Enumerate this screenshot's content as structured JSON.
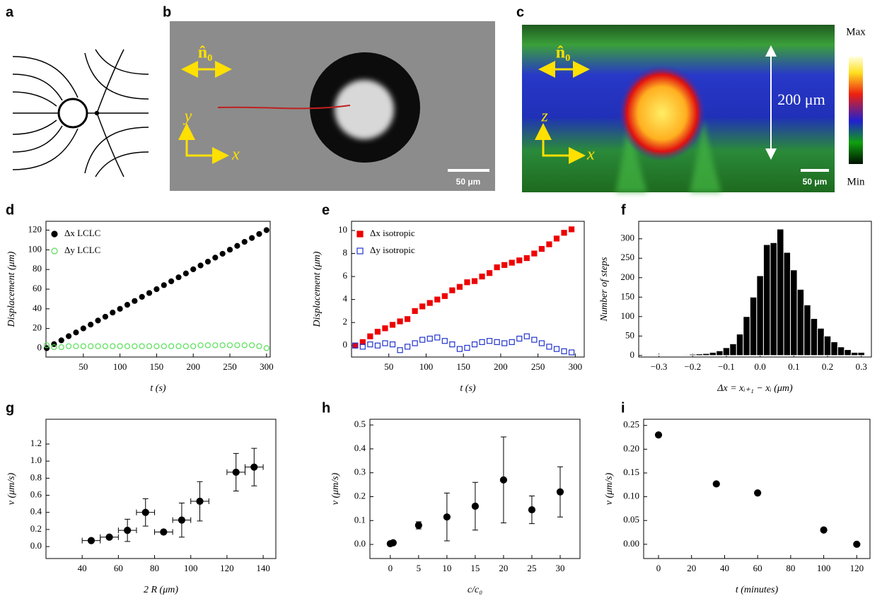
{
  "panel_labels": [
    "a",
    "b",
    "c",
    "d",
    "e",
    "f",
    "g",
    "h",
    "i"
  ],
  "images": {
    "b": {
      "director": "n̂₀",
      "axis_y": "y",
      "axis_x": "x",
      "scale_bar": "50 μm"
    },
    "c": {
      "director": "n̂₀",
      "axis_z": "z",
      "axis_x": "x",
      "height": "200 μm",
      "scale_bar": "50 μm",
      "colorbar_max": "Max",
      "colorbar_min": "Min"
    }
  },
  "chart_data": [
    {
      "type": "scatter",
      "xlabel": "t (s)",
      "ylabel": "Displacement  (μm)",
      "x": [
        0,
        10,
        20,
        30,
        40,
        50,
        60,
        70,
        80,
        90,
        100,
        110,
        120,
        130,
        140,
        150,
        160,
        170,
        180,
        190,
        200,
        210,
        220,
        230,
        240,
        250,
        260,
        270,
        280,
        290,
        300
      ],
      "xlim": [
        -1,
        305
      ],
      "xticks": [
        50,
        100,
        150,
        200,
        250,
        300
      ],
      "ylim": [
        -9,
        129
      ],
      "yticks": [
        0,
        20,
        40,
        60,
        80,
        100,
        120
      ],
      "legend": "upper left",
      "series": [
        {
          "name": "Δx  LCLC",
          "color": "#000000",
          "marker": "circle",
          "filled": true,
          "values": [
            0,
            4.1,
            8.0,
            12.2,
            16.0,
            20.1,
            24.0,
            28.1,
            32.0,
            36.2,
            40.0,
            44.1,
            48.0,
            52.2,
            56.1,
            60.0,
            64.1,
            68.0,
            72.1,
            76.0,
            80.2,
            84.1,
            88.0,
            92.1,
            96.0,
            100.1,
            104.0,
            108.1,
            112.0,
            116.1,
            120.0
          ]
        },
        {
          "name": "Δy  LCLC",
          "color": "#55e055",
          "marker": "circle",
          "filled": false,
          "values": [
            3,
            1,
            1,
            2,
            2,
            2,
            2,
            2,
            2,
            2,
            2,
            2,
            2,
            2,
            2,
            2,
            2,
            2,
            2,
            2,
            2,
            3,
            3,
            3,
            3,
            3,
            3,
            3,
            3,
            2,
            0
          ]
        }
      ]
    },
    {
      "type": "scatter",
      "xlabel": "t (s)",
      "ylabel": "Displacement  (μm)",
      "x": [
        5,
        15,
        25,
        35,
        45,
        55,
        65,
        75,
        85,
        95,
        105,
        115,
        125,
        135,
        145,
        155,
        165,
        175,
        185,
        195,
        205,
        215,
        225,
        235,
        245,
        255,
        265,
        275,
        285,
        295
      ],
      "xlim": [
        0,
        312
      ],
      "xticks": [
        50,
        100,
        150,
        200,
        250,
        300
      ],
      "ylim": [
        -1,
        10.8
      ],
      "yticks": [
        0,
        2,
        4,
        6,
        8,
        10
      ],
      "legend": "upper left",
      "series": [
        {
          "name": "Δx  isotropic",
          "color": "#ee0000",
          "marker": "square",
          "filled": true,
          "values": [
            0,
            0.3,
            0.8,
            1.2,
            1.5,
            1.8,
            2.1,
            2.3,
            3.0,
            3.4,
            3.7,
            4.0,
            4.3,
            4.8,
            5.1,
            5.5,
            5.6,
            6.0,
            6.3,
            6.8,
            7.0,
            7.2,
            7.4,
            7.6,
            8.0,
            8.4,
            8.8,
            9.3,
            9.8,
            10.1
          ]
        },
        {
          "name": "Δy  isotropic",
          "color": "#2233cc",
          "marker": "square",
          "filled": false,
          "values": [
            0,
            -0.1,
            0.1,
            0,
            0.2,
            0.1,
            -0.4,
            -0.1,
            0.2,
            0.5,
            0.6,
            0.7,
            0.4,
            0.1,
            -0.3,
            -0.2,
            0.1,
            0.3,
            0.4,
            0.3,
            0.2,
            0.3,
            0.6,
            0.8,
            0.5,
            0.2,
            -0.1,
            -0.3,
            -0.5,
            -0.6
          ]
        }
      ]
    },
    {
      "type": "histogram",
      "xlabel": "Δx = xᵢ₊₁ − xᵢ (μm)",
      "ylabel": "Number of steps",
      "color": "#000000",
      "bins": [
        -0.31,
        -0.29,
        -0.27,
        -0.25,
        -0.23,
        -0.21,
        -0.19,
        -0.17,
        -0.15,
        -0.13,
        -0.11,
        -0.09,
        -0.07,
        -0.05,
        -0.03,
        -0.01,
        0.01,
        0.03,
        0.05,
        0.07,
        0.09,
        0.11,
        0.13,
        0.15,
        0.17,
        0.19,
        0.21,
        0.23,
        0.25,
        0.27,
        0.29,
        0.31
      ],
      "values": [
        2,
        0,
        1,
        1,
        2,
        3,
        4,
        5,
        8,
        12,
        20,
        30,
        55,
        100,
        150,
        205,
        285,
        290,
        325,
        265,
        220,
        170,
        130,
        95,
        70,
        50,
        35,
        22,
        15,
        8,
        8
      ],
      "xlim": [
        -0.36,
        0.33
      ],
      "xticks": [
        {
          "value": -0.3,
          "label": "−0.3"
        },
        {
          "value": -0.2,
          "label": "−0.2"
        },
        {
          "value": -0.1,
          "label": "−0.1"
        },
        {
          "value": 0,
          "label": "0.0"
        },
        0.1,
        0.2,
        0.3
      ],
      "ylim": [
        -4,
        345
      ],
      "yticks": [
        0,
        50,
        100,
        150,
        200,
        250,
        300
      ]
    },
    {
      "type": "scatter",
      "xlabel": "2 R (μm)",
      "ylabel": "v  (μm/s)",
      "x": [
        45,
        55,
        65,
        75,
        85,
        95,
        105,
        125,
        135
      ],
      "xlim": [
        20,
        147
      ],
      "xticks": [
        40,
        60,
        80,
        100,
        120,
        140
      ],
      "ylim": [
        -0.14,
        1.49
      ],
      "yticks": [
        {
          "value": 0,
          "label": "0.0"
        },
        0.2,
        0.4,
        0.6,
        0.8,
        {
          "value": 1,
          "label": "1.0"
        },
        1.2
      ],
      "series": [
        {
          "color": "#000000",
          "marker": "circle",
          "filled": true,
          "values": [
            0.07,
            0.11,
            0.19,
            0.4,
            0.17,
            0.31,
            0.53,
            0.87,
            0.93
          ],
          "yerr": [
            0.02,
            0.02,
            0.13,
            0.16,
            0.02,
            0.2,
            0.23,
            0.22,
            0.22
          ],
          "xerr": [
            5,
            5,
            5,
            5,
            5,
            5,
            5,
            5,
            5
          ]
        }
      ]
    },
    {
      "type": "scatter",
      "xlabel": "c/c₀",
      "ylabel": "v  (μm/s)",
      "x": [
        0,
        0.5,
        5,
        10,
        15,
        20,
        25,
        30
      ],
      "xlim": [
        -3.6,
        33.5
      ],
      "xticks": [
        0,
        5,
        10,
        15,
        20,
        25,
        30
      ],
      "ylim": [
        -0.059,
        0.524
      ],
      "yticks": [
        {
          "value": 0,
          "label": "0.0"
        },
        0.1,
        0.2,
        0.3,
        0.4,
        0.5
      ],
      "series": [
        {
          "color": "#000000",
          "marker": "circle",
          "filled": true,
          "values": [
            0.003,
            0.007,
            0.08,
            0.115,
            0.16,
            0.27,
            0.145,
            0.22
          ],
          "yerr": [
            0.004,
            0.004,
            0.015,
            0.1,
            0.1,
            0.18,
            0.058,
            0.105
          ]
        }
      ]
    },
    {
      "type": "scatter",
      "xlabel": "t (minutes)",
      "ylabel": "v  (μm/s)",
      "x": [
        0,
        35,
        60,
        100,
        120
      ],
      "xlim": [
        -9,
        128
      ],
      "xticks": [
        0,
        20,
        40,
        60,
        80,
        100,
        120
      ],
      "ylim": [
        -0.03,
        0.263
      ],
      "yticks": [
        {
          "value": 0,
          "label": "0.00"
        },
        0.05,
        {
          "value": 0.1,
          "label": "0.10"
        },
        0.15,
        {
          "value": 0.2,
          "label": "0.20"
        },
        0.25
      ],
      "series": [
        {
          "color": "#000000",
          "marker": "circle",
          "filled": true,
          "values": [
            0.23,
            0.127,
            0.108,
            0.03,
            0
          ]
        }
      ]
    }
  ]
}
